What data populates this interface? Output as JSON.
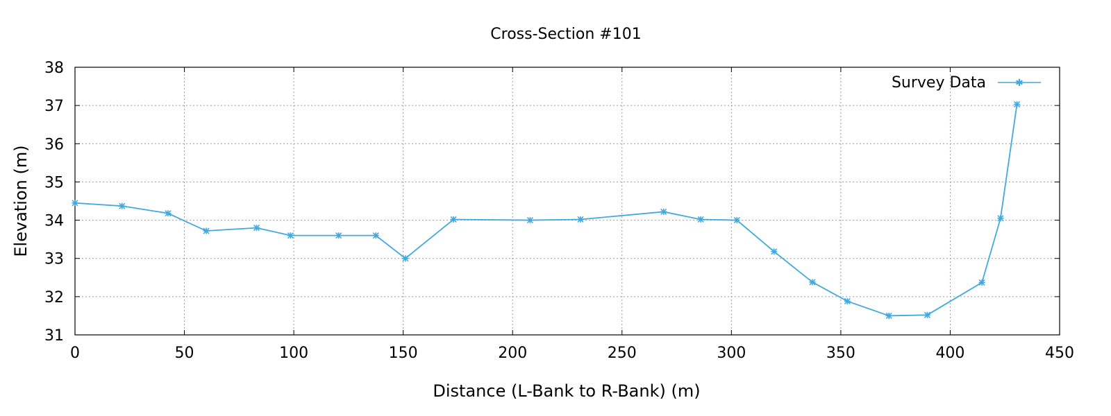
{
  "chart_data": {
    "type": "line",
    "title": "Cross-Section #101",
    "xlabel": "Distance (L-Bank to R-Bank) (m)",
    "ylabel": "Elevation (m)",
    "xlim": [
      0,
      450
    ],
    "ylim": [
      31,
      38
    ],
    "xticks": [
      0,
      50,
      100,
      150,
      200,
      250,
      300,
      350,
      400,
      450
    ],
    "yticks": [
      31,
      32,
      33,
      34,
      35,
      36,
      37,
      38
    ],
    "grid": true,
    "legend_position": "top-right",
    "series": [
      {
        "name": "Survey Data",
        "color": "#3fa9e0",
        "marker": "asterisk",
        "x": [
          0,
          21.5,
          42.5,
          60,
          83,
          98.5,
          120.5,
          137.5,
          151,
          173,
          208,
          231,
          269,
          286,
          302.5,
          319.5,
          337,
          353,
          372,
          389.5,
          414.5,
          423,
          430.5
        ],
        "y": [
          34.45,
          34.37,
          34.18,
          33.72,
          33.8,
          33.6,
          33.6,
          33.6,
          33.0,
          34.02,
          34.0,
          34.02,
          34.22,
          34.02,
          34.0,
          33.18,
          32.38,
          31.88,
          31.5,
          31.52,
          32.37,
          34.05,
          37.03
        ]
      }
    ]
  }
}
